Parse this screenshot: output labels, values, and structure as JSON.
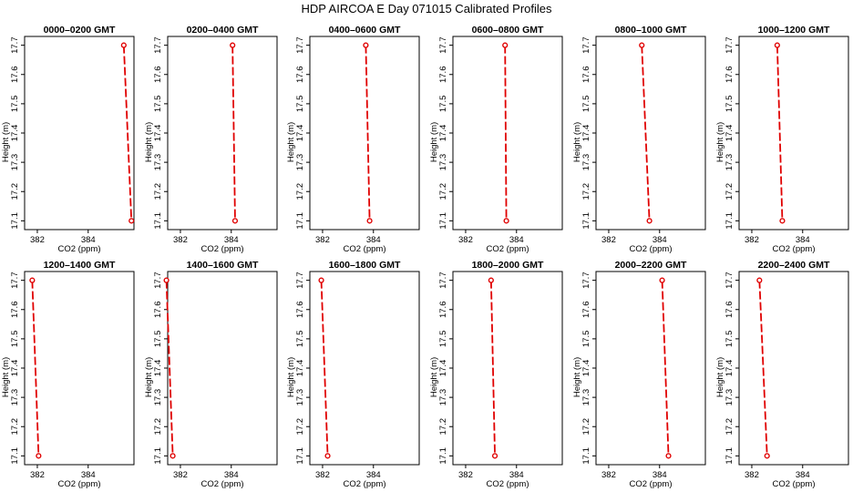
{
  "figure": {
    "title": "HDP  AIRCOA E  Day 071015  Calibrated Profiles"
  },
  "chart_data": [
    {
      "type": "line",
      "title": "0000–0200 GMT",
      "xlabel": "CO2 (ppm)",
      "ylabel": "Height (m)",
      "xlim": [
        381.5,
        385.8
      ],
      "ylim": [
        17.07,
        17.73
      ],
      "xticks": [
        "382",
        "384"
      ],
      "yticks": [
        "17.1",
        "17.2",
        "17.3",
        "17.4",
        "17.5",
        "17.6",
        "17.7"
      ],
      "grid": false,
      "series": [
        {
          "x": [
            385.4,
            385.7
          ],
          "y": [
            17.7,
            17.1
          ]
        }
      ]
    },
    {
      "type": "line",
      "title": "0200–0400 GMT",
      "xlabel": "CO2 (ppm)",
      "ylabel": "Height (m)",
      "xlim": [
        381.5,
        385.8
      ],
      "ylim": [
        17.07,
        17.73
      ],
      "xticks": [
        "382",
        "384"
      ],
      "yticks": [
        "17.1",
        "17.2",
        "17.3",
        "17.4",
        "17.5",
        "17.6",
        "17.7"
      ],
      "grid": false,
      "series": [
        {
          "x": [
            384.05,
            384.15
          ],
          "y": [
            17.7,
            17.1
          ]
        }
      ]
    },
    {
      "type": "line",
      "title": "0400–0600 GMT",
      "xlabel": "CO2 (ppm)",
      "ylabel": "Height (m)",
      "xlim": [
        381.5,
        385.8
      ],
      "ylim": [
        17.07,
        17.73
      ],
      "xticks": [
        "382",
        "384"
      ],
      "yticks": [
        "17.1",
        "17.2",
        "17.3",
        "17.4",
        "17.5",
        "17.6",
        "17.7"
      ],
      "grid": false,
      "series": [
        {
          "x": [
            383.7,
            383.85
          ],
          "y": [
            17.7,
            17.1
          ]
        }
      ]
    },
    {
      "type": "line",
      "title": "0600–0800 GMT",
      "xlabel": "CO2 (ppm)",
      "ylabel": "Height (m)",
      "xlim": [
        381.5,
        385.8
      ],
      "ylim": [
        17.07,
        17.73
      ],
      "xticks": [
        "382",
        "384"
      ],
      "yticks": [
        "17.1",
        "17.2",
        "17.3",
        "17.4",
        "17.5",
        "17.6",
        "17.7"
      ],
      "grid": false,
      "series": [
        {
          "x": [
            383.55,
            383.6
          ],
          "y": [
            17.7,
            17.1
          ]
        }
      ]
    },
    {
      "type": "line",
      "title": "0800–1000 GMT",
      "xlabel": "CO2 (ppm)",
      "ylabel": "Height (m)",
      "xlim": [
        381.5,
        385.8
      ],
      "ylim": [
        17.07,
        17.73
      ],
      "xticks": [
        "382",
        "384"
      ],
      "yticks": [
        "17.1",
        "17.2",
        "17.3",
        "17.4",
        "17.5",
        "17.6",
        "17.7"
      ],
      "grid": false,
      "series": [
        {
          "x": [
            383.3,
            383.6
          ],
          "y": [
            17.7,
            17.1
          ]
        }
      ]
    },
    {
      "type": "line",
      "title": "1000–1200 GMT",
      "xlabel": "CO2 (ppm)",
      "ylabel": "Height (m)",
      "xlim": [
        381.5,
        385.8
      ],
      "ylim": [
        17.07,
        17.73
      ],
      "xticks": [
        "382",
        "384"
      ],
      "yticks": [
        "17.1",
        "17.2",
        "17.3",
        "17.4",
        "17.5",
        "17.6",
        "17.7"
      ],
      "grid": false,
      "series": [
        {
          "x": [
            383.0,
            383.2
          ],
          "y": [
            17.7,
            17.1
          ]
        }
      ]
    },
    {
      "type": "line",
      "title": "1200–1400 GMT",
      "xlabel": "CO2 (ppm)",
      "ylabel": "Height (m)",
      "xlim": [
        381.5,
        385.8
      ],
      "ylim": [
        17.07,
        17.73
      ],
      "xticks": [
        "382",
        "384"
      ],
      "yticks": [
        "17.1",
        "17.2",
        "17.3",
        "17.4",
        "17.5",
        "17.6",
        "17.7"
      ],
      "grid": false,
      "series": [
        {
          "x": [
            381.8,
            382.05
          ],
          "y": [
            17.7,
            17.1
          ]
        }
      ]
    },
    {
      "type": "line",
      "title": "1400–1600 GMT",
      "xlabel": "CO2 (ppm)",
      "ylabel": "Height (m)",
      "xlim": [
        381.5,
        385.8
      ],
      "ylim": [
        17.07,
        17.73
      ],
      "xticks": [
        "382",
        "384"
      ],
      "yticks": [
        "17.1",
        "17.2",
        "17.3",
        "17.4",
        "17.5",
        "17.6",
        "17.7"
      ],
      "grid": false,
      "series": [
        {
          "x": [
            381.45,
            381.7
          ],
          "y": [
            17.7,
            17.1
          ]
        }
      ]
    },
    {
      "type": "line",
      "title": "1600–1800 GMT",
      "xlabel": "CO2 (ppm)",
      "ylabel": "Height (m)",
      "xlim": [
        381.5,
        385.8
      ],
      "ylim": [
        17.07,
        17.73
      ],
      "xticks": [
        "382",
        "384"
      ],
      "yticks": [
        "17.1",
        "17.2",
        "17.3",
        "17.4",
        "17.5",
        "17.6",
        "17.7"
      ],
      "grid": false,
      "series": [
        {
          "x": [
            381.95,
            382.2
          ],
          "y": [
            17.7,
            17.1
          ]
        }
      ]
    },
    {
      "type": "line",
      "title": "1800–2000 GMT",
      "xlabel": "CO2 (ppm)",
      "ylabel": "Height (m)",
      "xlim": [
        381.5,
        385.8
      ],
      "ylim": [
        17.07,
        17.73
      ],
      "xticks": [
        "382",
        "384"
      ],
      "yticks": [
        "17.1",
        "17.2",
        "17.3",
        "17.4",
        "17.5",
        "17.6",
        "17.7"
      ],
      "grid": false,
      "series": [
        {
          "x": [
            383.0,
            383.15
          ],
          "y": [
            17.7,
            17.1
          ]
        }
      ]
    },
    {
      "type": "line",
      "title": "2000–2200 GMT",
      "xlabel": "CO2 (ppm)",
      "ylabel": "Height (m)",
      "xlim": [
        381.5,
        385.8
      ],
      "ylim": [
        17.07,
        17.73
      ],
      "xticks": [
        "382",
        "384"
      ],
      "yticks": [
        "17.1",
        "17.2",
        "17.3",
        "17.4",
        "17.5",
        "17.6",
        "17.7"
      ],
      "grid": false,
      "series": [
        {
          "x": [
            384.1,
            384.35
          ],
          "y": [
            17.7,
            17.1
          ]
        }
      ]
    },
    {
      "type": "line",
      "title": "2200–2400 GMT",
      "xlabel": "CO2 (ppm)",
      "ylabel": "Height (m)",
      "xlim": [
        381.5,
        385.8
      ],
      "ylim": [
        17.07,
        17.73
      ],
      "xticks": [
        "382",
        "384"
      ],
      "yticks": [
        "17.1",
        "17.2",
        "17.3",
        "17.4",
        "17.5",
        "17.6",
        "17.7"
      ],
      "grid": false,
      "series": [
        {
          "x": [
            382.3,
            382.6
          ],
          "y": [
            17.7,
            17.1
          ]
        }
      ]
    }
  ],
  "colors": {
    "series": "#e00000",
    "frame": "#000000"
  }
}
